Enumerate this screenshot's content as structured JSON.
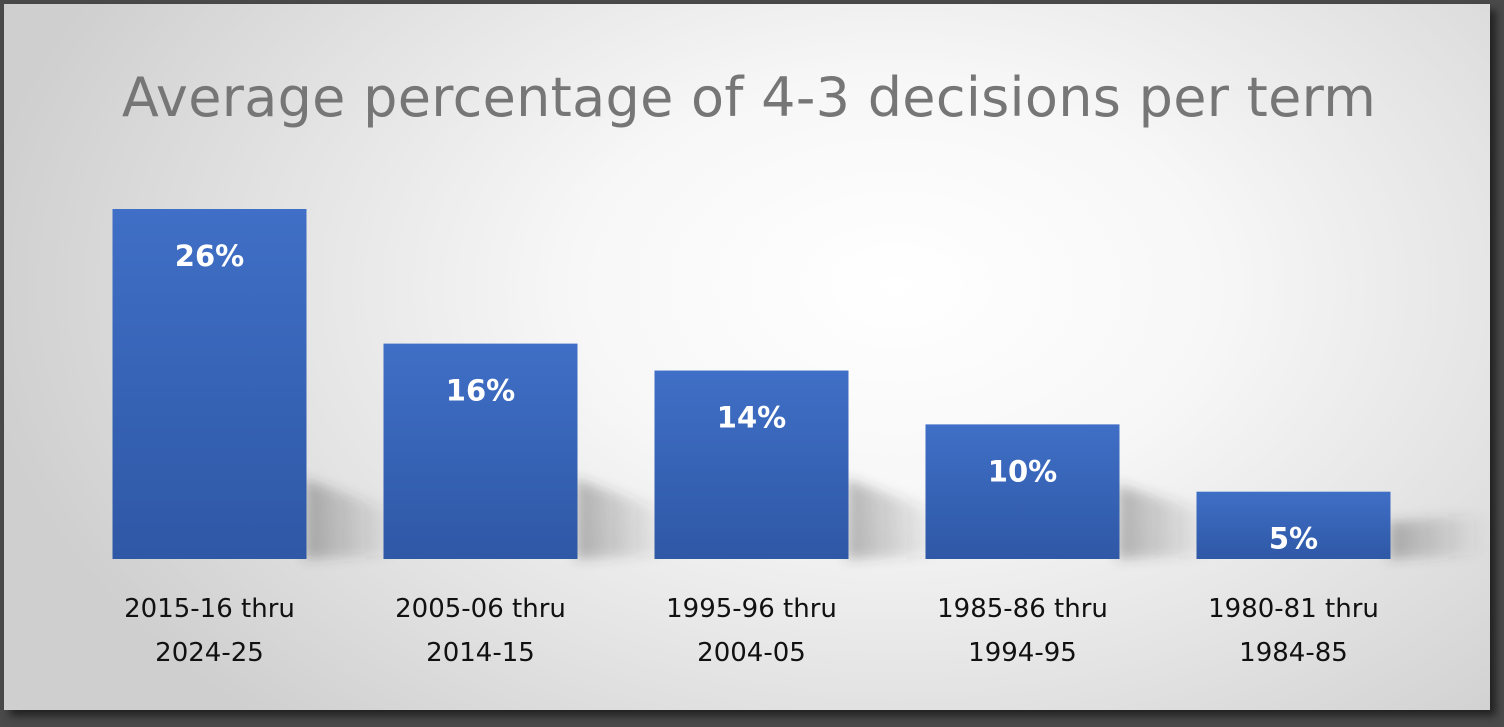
{
  "chart_data": {
    "type": "bar",
    "title": "Average percentage of 4-3 decisions per term",
    "categories": [
      [
        "2015-16 thru",
        "2024-25"
      ],
      [
        "2005-06 thru",
        "2014-15"
      ],
      [
        "1995-96 thru",
        "2004-05"
      ],
      [
        "1985-86 thru",
        "1994-95"
      ],
      [
        "1980-81 thru",
        "1984-85"
      ]
    ],
    "values": [
      26,
      16,
      14,
      10,
      5
    ],
    "data_labels": [
      "26%",
      "16%",
      "14%",
      "10%",
      "5%"
    ],
    "ylim": [
      0,
      26
    ],
    "grid": false,
    "legend": false,
    "bar_color": "#3f6fc6",
    "bar_color_bottom": "#2f58a6",
    "title_color": "#767676"
  }
}
